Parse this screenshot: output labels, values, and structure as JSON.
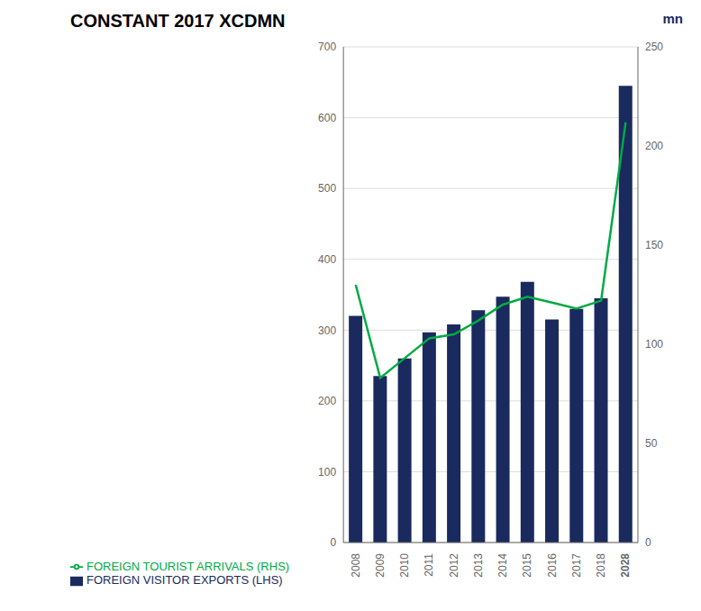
{
  "chart_data": {
    "type": "bar",
    "title": "CONSTANT 2017 XCDMN",
    "y2label": "mn",
    "categories": [
      "2008",
      "2009",
      "2010",
      "2011",
      "2012",
      "2013",
      "2014",
      "2015",
      "2016",
      "2017",
      "2018",
      "2028"
    ],
    "series": [
      {
        "name": "FOREIGN VISITOR EXPORTS (LHS)",
        "type": "bar",
        "color": "#1a2a5e",
        "values": [
          320,
          235,
          260,
          297,
          308,
          328,
          347,
          368,
          315,
          330,
          345,
          645
        ]
      },
      {
        "name": "FOREIGN TOURIST ARRIVALS (RHS)",
        "type": "line",
        "color": "#00aa44",
        "axis": "y2",
        "values": [
          130,
          83,
          93,
          103,
          105,
          112,
          120,
          124,
          121,
          118,
          122,
          212
        ]
      }
    ],
    "ylim": [
      0,
      700
    ],
    "yticks": [
      0,
      100,
      200,
      300,
      400,
      500,
      600,
      700
    ],
    "y2lim": [
      0,
      250
    ],
    "y2ticks": [
      0,
      50,
      100,
      150,
      200,
      250
    ],
    "grid": true,
    "legend": "bottom"
  }
}
